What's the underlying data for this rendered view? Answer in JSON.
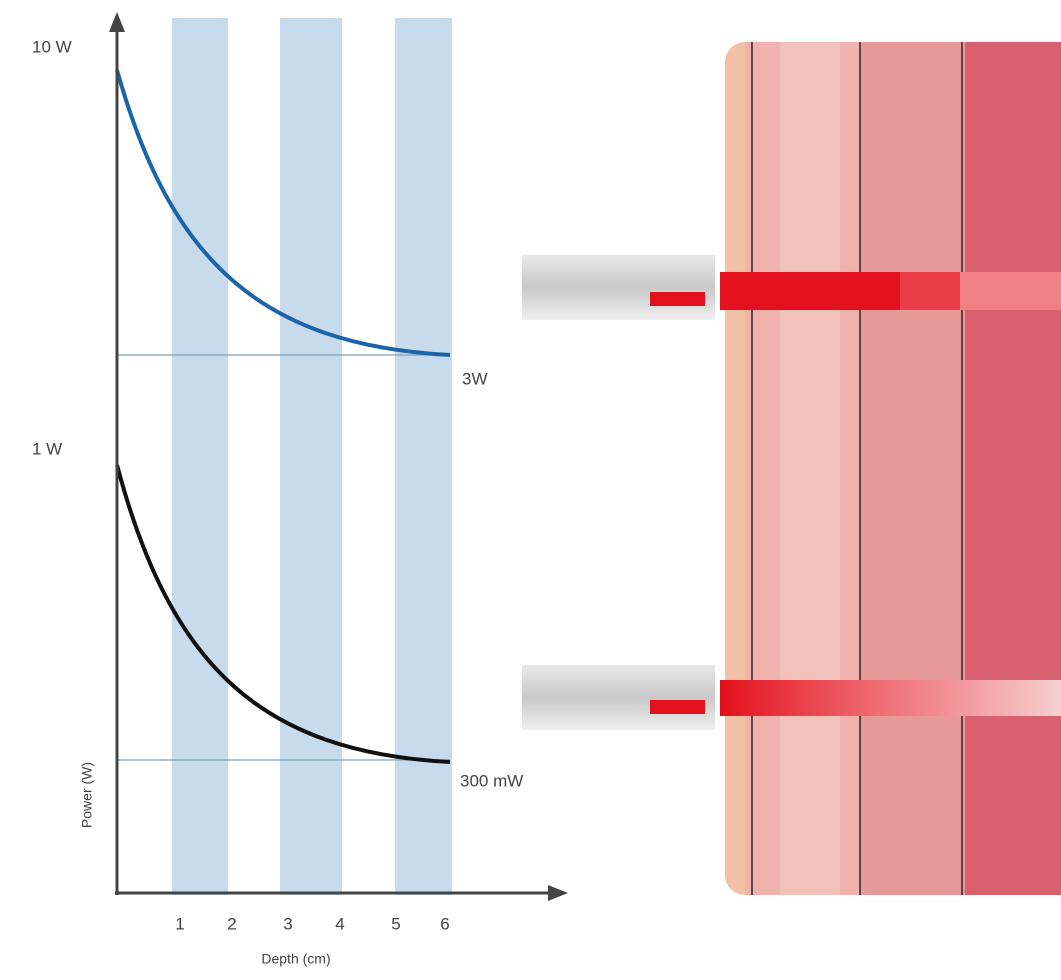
{
  "chart": {
    "y_labels": [
      "10 W",
      "1 W"
    ],
    "y_axis_title": "Power (W)",
    "x_ticks": [
      1,
      2,
      3,
      4,
      5,
      6
    ],
    "x_axis_title": "Depth (cm)",
    "annotations": [
      "3W",
      "300 mW"
    ]
  }
}
